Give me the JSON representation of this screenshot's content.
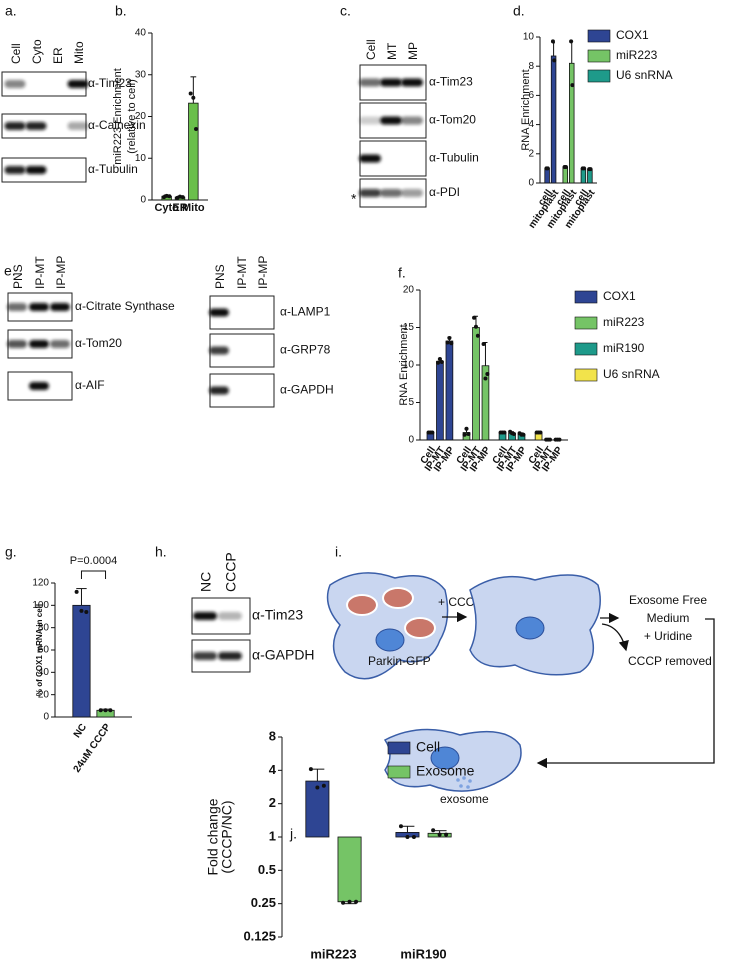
{
  "panels": {
    "a": {
      "label": "a.",
      "lanes": [
        "Cell",
        "Cyto",
        "ER",
        "Mito"
      ],
      "antibodies": [
        "α-Tim23",
        "α-Calnexin",
        "α-Tubulin"
      ]
    },
    "c": {
      "label": "c.",
      "lanes": [
        "Cell",
        "MT",
        "MP"
      ],
      "antibodies": [
        "α-Tim23",
        "α-Tom20",
        "α-Tubulin",
        "α-PDI"
      ],
      "marker": "*"
    },
    "e": {
      "label": "e.",
      "blots": [
        {
          "lanes": [
            "PNS",
            "IP-MT",
            "IP-MP"
          ],
          "antibodies": [
            "α-Citrate Synthase",
            "α-Tom20",
            "α-AIF"
          ]
        },
        {
          "lanes": [
            "PNS",
            "IP-MT",
            "IP-MP"
          ],
          "antibodies": [
            "α-LAMP1",
            "α-GRP78",
            "α-GAPDH"
          ]
        }
      ]
    },
    "h": {
      "label": "h.",
      "lanes": [
        "NC",
        "CCCP"
      ],
      "antibodies": [
        "α-Tim23",
        "α-GAPDH"
      ]
    },
    "i": {
      "label": "i.",
      "treatment": "+ CCCP",
      "cell_line": "Parkin-GFP",
      "medium": [
        "Exosome Free",
        "Medium",
        "+ Uridine"
      ],
      "removal": "CCCP removed",
      "product": "exosome"
    }
  },
  "chart_data": [
    {
      "type": "bar",
      "label": "b.",
      "ylabel": [
        "miR223 Enrichment",
        "(relative to cell)"
      ],
      "categories": [
        "Cyto",
        "ER",
        "Mito"
      ],
      "values": [
        0.9,
        0.7,
        23.2
      ],
      "errors": [
        0.3,
        0.2,
        6.3
      ],
      "points": [
        [
          0.7,
          1.0,
          0.9
        ],
        [
          0.5,
          0.8,
          0.7
        ],
        [
          25.5,
          24.5,
          17
        ]
      ],
      "color": "#6abf4b",
      "ylim": [
        0,
        40
      ],
      "yticks": [
        0,
        10,
        20,
        30,
        40
      ]
    },
    {
      "type": "bar",
      "label": "d.",
      "ylabel": [
        "RNA Enrichment"
      ],
      "categories": [
        "cell",
        "mitoplast",
        "cell",
        "mitoplast",
        "cell",
        "mitoplast"
      ],
      "series": [
        {
          "name": "COX1",
          "color": "#2e4593",
          "values": [
            1.0,
            8.7,
            null,
            null,
            null,
            null
          ],
          "errors": [
            0.05,
            0.9,
            null,
            null,
            null,
            null
          ],
          "points": [
            [
              1.0,
              1.0
            ],
            [
              9.7,
              8.4
            ],
            null,
            null,
            null,
            null
          ]
        },
        {
          "name": "miR223",
          "color": "#75c466",
          "values": [
            null,
            null,
            1.1,
            8.2,
            null,
            null
          ],
          "errors": [
            null,
            null,
            0.05,
            1.5,
            null,
            null
          ],
          "points": [
            null,
            null,
            [
              1.1,
              1.1
            ],
            [
              9.7,
              6.7
            ],
            null,
            null
          ]
        },
        {
          "name": "U6 snRNA",
          "color": "#1e9a8a",
          "values": [
            null,
            null,
            null,
            null,
            1.0,
            0.95
          ],
          "errors": [
            null,
            null,
            null,
            null,
            0.03,
            0.03
          ],
          "points": [
            null,
            null,
            null,
            null,
            [
              1.0,
              1.0
            ],
            [
              0.95,
              0.95
            ]
          ]
        }
      ],
      "ylim": [
        0,
        10
      ],
      "yticks": [
        0,
        2,
        4,
        6,
        8,
        10
      ]
    },
    {
      "type": "bar",
      "label": "f.",
      "ylabel": [
        "RNA Enrichment"
      ],
      "categories": [
        "Cell",
        "IP-MT",
        "IP-MP",
        "Cell",
        "IP-MT",
        "IP-MP",
        "Cell",
        "IP-MT",
        "IP-MP",
        "Cell",
        "IP-MT",
        "IP-MP"
      ],
      "series": [
        {
          "name": "COX1",
          "color": "#2e4593",
          "values": [
            1.0,
            10.5,
            13.2,
            null,
            null,
            null,
            null,
            null,
            null,
            null,
            null,
            null
          ],
          "errors": [
            0.1,
            0.3,
            0.5,
            null,
            null,
            null,
            null,
            null,
            null,
            null,
            null,
            null
          ],
          "points": [
            [
              1.0,
              1.0,
              1.0
            ],
            [
              10.3,
              10.8,
              10.4
            ],
            [
              13.0,
              13.6,
              12.9
            ],
            null,
            null,
            null,
            null,
            null,
            null,
            null,
            null,
            null
          ]
        },
        {
          "name": "miR223",
          "color": "#75c466",
          "values": [
            null,
            null,
            null,
            1.0,
            15.0,
            9.9,
            null,
            null,
            null,
            null,
            null,
            null
          ],
          "errors": [
            null,
            null,
            null,
            0.5,
            1.5,
            3.1,
            null,
            null,
            null,
            null,
            null,
            null
          ],
          "points": [
            null,
            null,
            null,
            [
              0.7,
              1.5,
              0.8
            ],
            [
              16.3,
              15.1,
              13.9
            ],
            [
              12.8,
              8.2,
              8.8
            ],
            null,
            null,
            null,
            null,
            null,
            null
          ]
        },
        {
          "name": "miR190",
          "color": "#1e9a8a",
          "values": [
            null,
            null,
            null,
            null,
            null,
            null,
            1.0,
            0.9,
            0.75,
            null,
            null,
            null
          ],
          "errors": [
            null,
            null,
            null,
            null,
            null,
            null,
            0.1,
            0.2,
            0.2,
            null,
            null,
            null
          ],
          "points": [
            null,
            null,
            null,
            null,
            null,
            null,
            [
              1.0,
              1.0,
              1.0
            ],
            [
              1.1,
              0.9,
              0.8
            ],
            [
              0.9,
              0.7,
              0.7
            ],
            null,
            null,
            null
          ]
        },
        {
          "name": "U6 snRNA",
          "color": "#f2e34b",
          "values": [
            null,
            null,
            null,
            null,
            null,
            null,
            null,
            null,
            null,
            1.0,
            0.05,
            0.05
          ],
          "errors": [
            null,
            null,
            null,
            null,
            null,
            null,
            null,
            null,
            null,
            0.1,
            0.02,
            0.02
          ],
          "points": [
            null,
            null,
            null,
            null,
            null,
            null,
            null,
            null,
            null,
            [
              1.0,
              1.0,
              1.0
            ],
            [
              0.05,
              0.05,
              0.05
            ],
            [
              0.05,
              0.05,
              0.05
            ]
          ]
        }
      ],
      "ylim": [
        0,
        20
      ],
      "yticks": [
        0,
        5,
        10,
        15,
        20
      ]
    },
    {
      "type": "bar",
      "label": "g.",
      "annotation": "P=0.0004",
      "ylabel": [
        "% of COX1 mRNA in cell"
      ],
      "categories": [
        "NC",
        "24uM CCCP"
      ],
      "values": [
        100,
        6
      ],
      "errors": [
        15,
        1
      ],
      "points": [
        [
          112,
          95,
          94
        ],
        [
          6,
          6,
          6
        ]
      ],
      "colors": [
        "#2e4593",
        "#75c466"
      ],
      "ylim": [
        0,
        120
      ],
      "yticks": [
        0,
        20,
        40,
        60,
        80,
        100,
        120
      ]
    },
    {
      "type": "bar",
      "label": "j.",
      "log_scale": true,
      "ylabel": [
        "Fold change",
        "(CCCP/NC)"
      ],
      "categories": [
        "miR223",
        "miR190"
      ],
      "series": [
        {
          "name": "Cell",
          "color": "#2e4593",
          "values": [
            3.2,
            1.1
          ],
          "errors": [
            0.9,
            0.15
          ],
          "points": [
            [
              4.1,
              2.8,
              2.9
            ],
            [
              1.25,
              1.0,
              1.0
            ]
          ]
        },
        {
          "name": "Exosome",
          "color": "#75c466",
          "values": [
            0.26,
            1.08
          ],
          "errors": [
            0.01,
            0.06
          ],
          "points": [
            [
              0.255,
              0.26,
              0.26
            ],
            [
              1.15,
              1.05,
              1.05
            ]
          ]
        }
      ],
      "ylim": [
        0.125,
        8
      ],
      "yticks": [
        0.125,
        0.25,
        0.5,
        1,
        2,
        4,
        8
      ]
    }
  ]
}
